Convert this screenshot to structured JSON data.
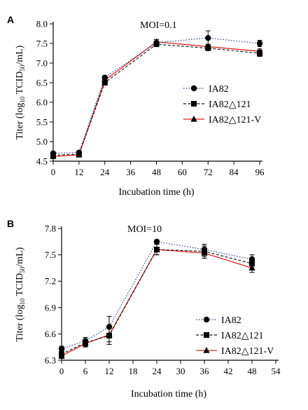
{
  "chart_data": [
    {
      "type": "line",
      "panel_label": "A",
      "annotation": "MOI=0.1",
      "xlabel": "Incubation time (h)",
      "ylabel": "Titer (log10 TCID50/mL)",
      "ylabel_parts": {
        "pre": "Titer (log",
        "sub1": "10",
        "mid": " TCID",
        "sub2": "50",
        "post": "/mL)"
      },
      "x_ticks": [
        0,
        12,
        24,
        36,
        48,
        60,
        72,
        84,
        96
      ],
      "y_ticks": [
        "4.5",
        "5.0",
        "5.5",
        "6.0",
        "6.5",
        "7.0",
        "7.5",
        "8.0"
      ],
      "xlim": [
        0,
        96
      ],
      "ylim": [
        4.5,
        8.0
      ],
      "x": [
        0,
        12,
        24,
        48,
        72,
        96
      ],
      "legend_position": "right-center",
      "series": [
        {
          "name": "IA82",
          "marker": "circle",
          "color": "#000000",
          "line_color": "#1f3a8a",
          "dash": "dotted",
          "values": [
            4.7,
            4.72,
            6.63,
            7.52,
            7.64,
            7.5
          ],
          "err": [
            0.04,
            0.04,
            0.05,
            0.08,
            0.18,
            0.08
          ]
        },
        {
          "name": "IA82△121",
          "marker": "square",
          "color": "#000000",
          "line_color": "#111111",
          "dash": "dashed",
          "values": [
            4.65,
            4.68,
            6.5,
            7.48,
            7.38,
            7.25
          ],
          "err": [
            0.04,
            0.04,
            0.05,
            0.06,
            0.06,
            0.08
          ]
        },
        {
          "name": "IA82△121-V",
          "marker": "triangle",
          "color": "#000000",
          "line_color": "#e02020",
          "dash": "solid",
          "values": [
            4.62,
            4.66,
            6.56,
            7.54,
            7.42,
            7.3
          ],
          "err": [
            0.03,
            0.03,
            0.05,
            0.06,
            0.06,
            0.06
          ]
        }
      ]
    },
    {
      "type": "line",
      "panel_label": "B",
      "annotation": "MOI=10",
      "xlabel": "Incubation time (h)",
      "ylabel": "Titer (log10 TCID50/mL)",
      "ylabel_parts": {
        "pre": "Titer (log",
        "sub1": "10",
        "mid": " TCID",
        "sub2": "50",
        "post": "/mL)"
      },
      "x_ticks": [
        0,
        6,
        12,
        18,
        24,
        30,
        36,
        42,
        48,
        54
      ],
      "y_ticks": [
        "6.3",
        "6.6",
        "6.9",
        "7.2",
        "7.5",
        "7.8"
      ],
      "xlim": [
        0,
        54
      ],
      "ylim": [
        6.3,
        7.8
      ],
      "x": [
        0,
        6,
        12,
        24,
        36,
        48
      ],
      "legend_position": "right-bottom",
      "series": [
        {
          "name": "IA82",
          "marker": "circle",
          "color": "#000000",
          "line_color": "#1f3a8a",
          "dash": "dotted",
          "values": [
            6.43,
            6.52,
            6.68,
            7.65,
            7.56,
            7.45
          ],
          "err": [
            0.03,
            0.04,
            0.12,
            0.02,
            0.06,
            0.05
          ]
        },
        {
          "name": "IA82△121",
          "marker": "square",
          "color": "#000000",
          "line_color": "#111111",
          "dash": "dashed",
          "values": [
            6.37,
            6.5,
            6.58,
            7.56,
            7.54,
            7.4
          ],
          "err": [
            0.03,
            0.04,
            0.1,
            0.06,
            0.06,
            0.05
          ]
        },
        {
          "name": "IA82△121-V",
          "marker": "triangle",
          "color": "#000000",
          "line_color": "#e02020",
          "dash": "solid",
          "values": [
            6.35,
            6.49,
            6.59,
            7.56,
            7.52,
            7.35
          ],
          "err": [
            0.03,
            0.04,
            0.08,
            0.06,
            0.06,
            0.05
          ]
        }
      ]
    }
  ]
}
